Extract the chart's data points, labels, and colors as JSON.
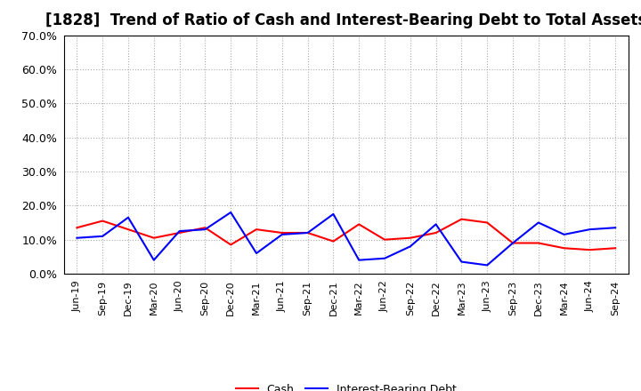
{
  "title": "[1828]  Trend of Ratio of Cash and Interest-Bearing Debt to Total Assets",
  "x_labels": [
    "Jun-19",
    "Sep-19",
    "Dec-19",
    "Mar-20",
    "Jun-20",
    "Sep-20",
    "Dec-20",
    "Mar-21",
    "Jun-21",
    "Sep-21",
    "Dec-21",
    "Mar-22",
    "Jun-22",
    "Sep-22",
    "Dec-22",
    "Mar-23",
    "Jun-23",
    "Sep-23",
    "Dec-23",
    "Mar-24",
    "Jun-24",
    "Sep-24"
  ],
  "cash": [
    13.5,
    15.5,
    13.0,
    10.5,
    12.0,
    13.5,
    8.5,
    13.0,
    12.0,
    12.0,
    9.5,
    14.5,
    10.0,
    10.5,
    12.0,
    16.0,
    15.0,
    9.0,
    9.0,
    7.5,
    7.0,
    7.5
  ],
  "ibd": [
    10.5,
    11.0,
    16.5,
    4.0,
    12.5,
    13.0,
    18.0,
    6.0,
    11.5,
    12.0,
    17.5,
    4.0,
    4.5,
    8.0,
    14.5,
    3.5,
    2.5,
    9.0,
    15.0,
    11.5,
    13.0,
    13.5
  ],
  "cash_color": "#ff0000",
  "ibd_color": "#0000ff",
  "ylim": [
    0,
    70
  ],
  "yticks": [
    0,
    10,
    20,
    30,
    40,
    50,
    60,
    70
  ],
  "ytick_labels": [
    "0.0%",
    "10.0%",
    "20.0%",
    "30.0%",
    "40.0%",
    "50.0%",
    "60.0%",
    "70.0%"
  ],
  "bg_color": "#ffffff",
  "grid_color": "#aaaaaa",
  "title_fontsize": 12,
  "tick_fontsize": 8,
  "legend_cash": "Cash",
  "legend_ibd": "Interest-Bearing Debt"
}
